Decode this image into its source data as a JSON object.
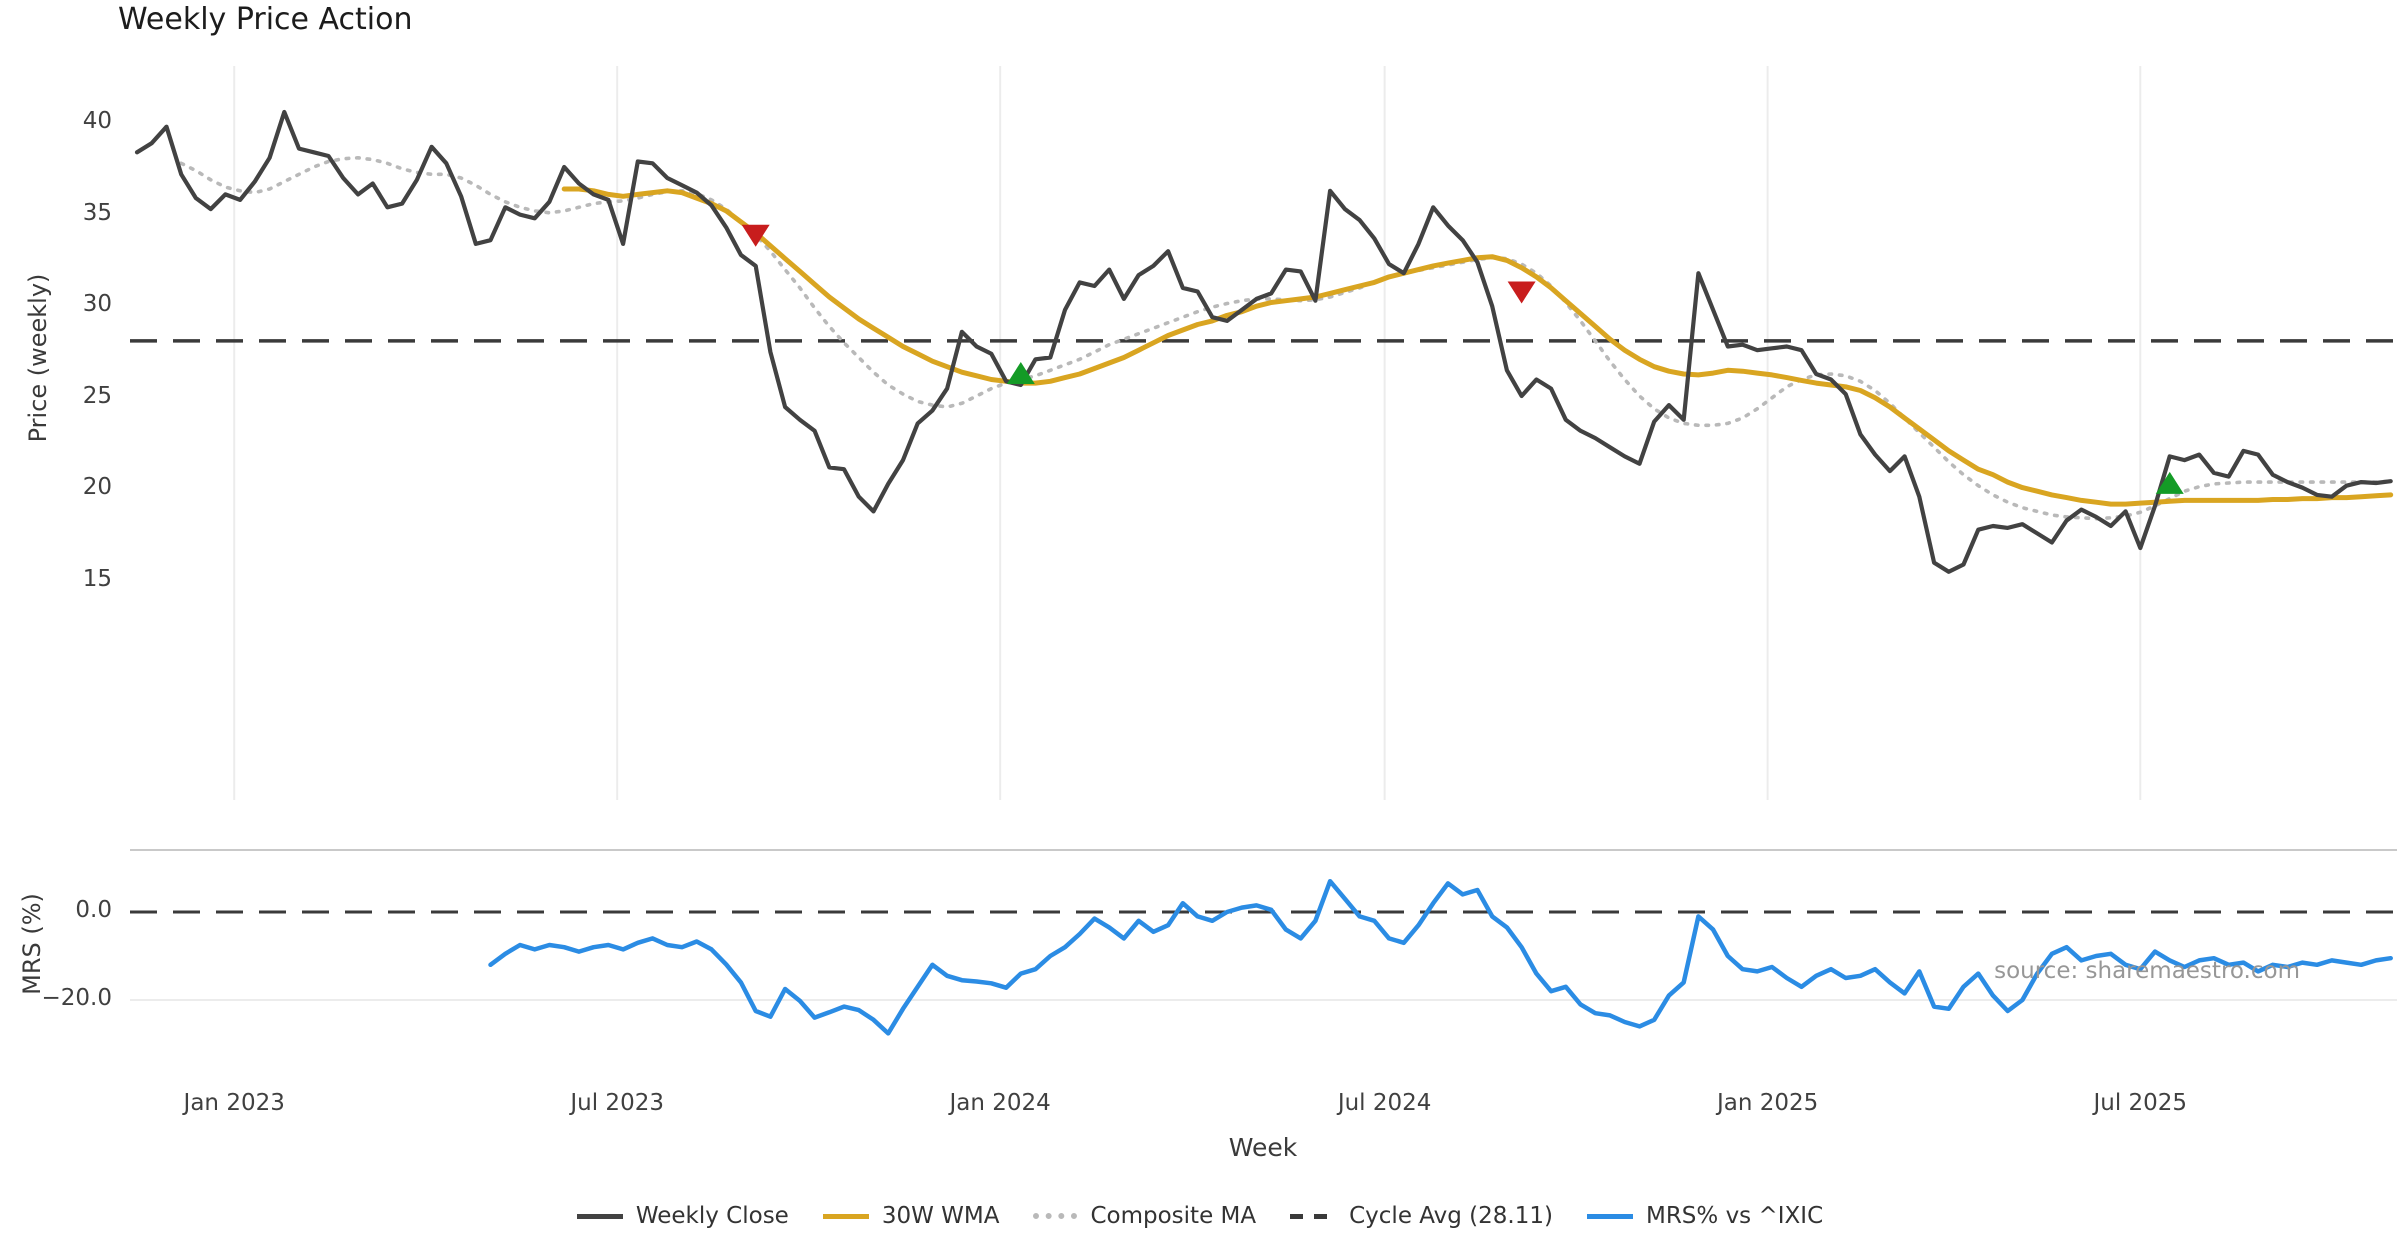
{
  "title": "Weekly Price Action",
  "source_note": "source: sharemaestro.com",
  "colors": {
    "close": "#424242",
    "wma": "#d9a521",
    "composite": "#b9b9b9",
    "cycle_avg": "#3a3a3a",
    "mrs": "#2b8ce4",
    "sell_marker": "#c81d1d",
    "buy_marker": "#149b26",
    "grid": "#ececec",
    "spine": "#c9c9c9",
    "tick_text": "#404040",
    "source_text": "#979797"
  },
  "legend": [
    {
      "label": "Weekly Close",
      "color": "#424242",
      "style": "solid"
    },
    {
      "label": "30W WMA",
      "color": "#d9a521",
      "style": "solid"
    },
    {
      "label": "Composite MA",
      "color": "#b9b9b9",
      "style": "dotted"
    },
    {
      "label": "Cycle Avg (28.11)",
      "color": "#3a3a3a",
      "style": "dashed"
    },
    {
      "label": "MRS% vs ^IXIC",
      "color": "#2b8ce4",
      "style": "solid"
    }
  ],
  "chart_data": [
    {
      "type": "line",
      "panel": "price",
      "title": "Weekly Price Action",
      "ylabel": "Price (weekly)",
      "xlabel": "Week",
      "ylim": [
        13.5,
        42.5
      ],
      "yticks": [
        40,
        35,
        30,
        25,
        20,
        15
      ],
      "xticks": [
        {
          "label": "Jan 2023",
          "week": 6.6
        },
        {
          "label": "Jul 2023",
          "week": 32.6
        },
        {
          "label": "Jan 2024",
          "week": 58.6
        },
        {
          "label": "Jul 2024",
          "week": 84.7
        },
        {
          "label": "Jan 2025",
          "week": 110.7
        },
        {
          "label": "Jul 2025",
          "week": 136.0
        }
      ],
      "cycle_avg": 28.11,
      "grid": "vertical-only",
      "series": [
        {
          "name": "Weekly Close",
          "style": "solid",
          "color": "#424242",
          "start_week": 0,
          "values": [
            38.4,
            38.9,
            39.8,
            37.2,
            35.9,
            35.3,
            36.1,
            35.8,
            36.8,
            38.1,
            40.6,
            38.6,
            38.4,
            38.2,
            37.0,
            36.1,
            36.7,
            35.4,
            35.6,
            36.9,
            38.7,
            37.8,
            36.0,
            33.4,
            33.6,
            35.4,
            35.0,
            34.8,
            35.7,
            37.6,
            36.7,
            36.1,
            35.8,
            33.4,
            37.9,
            37.8,
            37.0,
            36.6,
            36.2,
            35.5,
            34.3,
            32.8,
            32.2,
            27.5,
            24.5,
            23.8,
            23.2,
            21.2,
            21.1,
            19.6,
            18.8,
            20.3,
            21.6,
            23.6,
            24.3,
            25.5,
            28.6,
            27.8,
            27.4,
            25.9,
            25.7,
            27.1,
            27.2,
            29.8,
            31.3,
            31.1,
            32.0,
            30.4,
            31.7,
            32.2,
            33.0,
            31.0,
            30.8,
            29.4,
            29.2,
            29.8,
            30.4,
            30.7,
            32.0,
            31.9,
            30.3,
            36.3,
            35.3,
            34.7,
            33.7,
            32.3,
            31.8,
            33.4,
            35.4,
            34.4,
            33.6,
            32.4,
            30.0,
            26.5,
            25.1,
            26.0,
            25.5,
            23.8,
            23.2,
            22.8,
            22.3,
            21.8,
            21.4,
            23.7,
            24.6,
            23.8,
            31.8,
            29.8,
            27.8,
            27.9,
            27.6,
            27.7,
            27.8,
            27.6,
            26.3,
            26.0,
            25.2,
            23.0,
            21.9,
            21.0,
            21.8,
            19.6,
            16.0,
            15.5,
            15.9,
            17.8,
            18.0,
            17.9,
            18.1,
            17.6,
            17.1,
            18.3,
            18.9,
            18.5,
            18.0,
            18.8,
            16.8,
            19.1,
            21.8,
            21.6,
            21.9,
            20.9,
            20.7,
            22.1,
            21.9,
            20.8,
            20.4,
            20.1,
            19.7,
            19.6,
            20.2,
            20.4,
            20.35,
            20.45
          ]
        },
        {
          "name": "30W WMA",
          "style": "solid",
          "color": "#d9a521",
          "start_week": 29,
          "values": [
            36.4,
            36.4,
            36.3,
            36.1,
            36.0,
            36.1,
            36.2,
            36.3,
            36.2,
            35.9,
            35.6,
            35.2,
            34.6,
            34.0,
            33.3,
            32.6,
            31.9,
            31.2,
            30.5,
            29.9,
            29.3,
            28.8,
            28.3,
            27.8,
            27.4,
            27.0,
            26.7,
            26.4,
            26.2,
            26.0,
            25.9,
            25.8,
            25.8,
            25.9,
            26.1,
            26.3,
            26.6,
            26.9,
            27.2,
            27.6,
            28.0,
            28.4,
            28.7,
            29.0,
            29.2,
            29.5,
            29.7,
            30.0,
            30.2,
            30.3,
            30.4,
            30.5,
            30.7,
            30.9,
            31.1,
            31.3,
            31.6,
            31.8,
            32.0,
            32.2,
            32.35,
            32.5,
            32.65,
            32.7,
            32.5,
            32.1,
            31.6,
            31.0,
            30.3,
            29.6,
            28.9,
            28.2,
            27.6,
            27.1,
            26.7,
            26.45,
            26.3,
            26.25,
            26.35,
            26.5,
            26.45,
            26.35,
            26.25,
            26.1,
            25.95,
            25.8,
            25.7,
            25.6,
            25.4,
            25.0,
            24.5,
            23.9,
            23.3,
            22.7,
            22.1,
            21.6,
            21.1,
            20.8,
            20.4,
            20.1,
            19.9,
            19.7,
            19.55,
            19.4,
            19.3,
            19.2,
            19.2,
            19.25,
            19.3,
            19.35,
            19.4,
            19.4,
            19.4,
            19.4,
            19.4,
            19.4,
            19.45,
            19.45,
            19.5,
            19.5,
            19.55,
            19.55,
            19.6,
            19.65,
            19.7
          ]
        },
        {
          "name": "Composite MA",
          "style": "dotted",
          "color": "#b9b9b9",
          "start_week": 3,
          "values": [
            37.8,
            37.4,
            36.9,
            36.5,
            36.3,
            36.2,
            36.4,
            36.8,
            37.2,
            37.6,
            37.9,
            38.05,
            38.1,
            38.0,
            37.8,
            37.5,
            37.3,
            37.2,
            37.2,
            37.0,
            36.6,
            36.1,
            35.7,
            35.4,
            35.2,
            35.1,
            35.2,
            35.4,
            35.6,
            35.7,
            35.75,
            35.9,
            36.1,
            36.25,
            36.3,
            36.15,
            35.8,
            35.3,
            34.6,
            33.9,
            33.0,
            32.0,
            31.0,
            29.9,
            28.9,
            28.0,
            27.2,
            26.4,
            25.7,
            25.2,
            24.8,
            24.6,
            24.5,
            24.7,
            25.1,
            25.5,
            25.8,
            26.0,
            26.2,
            26.5,
            26.8,
            27.1,
            27.5,
            27.9,
            28.2,
            28.5,
            28.8,
            29.1,
            29.4,
            29.7,
            29.95,
            30.15,
            30.3,
            30.4,
            30.4,
            30.35,
            30.3,
            30.35,
            30.5,
            30.75,
            31.0,
            31.3,
            31.6,
            31.8,
            31.95,
            32.1,
            32.25,
            32.4,
            32.55,
            32.65,
            32.6,
            32.3,
            31.8,
            31.1,
            30.2,
            29.2,
            28.1,
            27.0,
            26.0,
            25.1,
            24.4,
            23.9,
            23.6,
            23.5,
            23.5,
            23.6,
            23.9,
            24.4,
            25.0,
            25.6,
            26.0,
            26.25,
            26.3,
            26.2,
            25.9,
            25.4,
            24.7,
            23.9,
            23.1,
            22.3,
            21.5,
            20.8,
            20.2,
            19.7,
            19.3,
            19.0,
            18.8,
            18.6,
            18.5,
            18.45,
            18.4,
            18.45,
            18.55,
            18.75,
            19.1,
            19.5,
            19.9,
            20.15,
            20.3,
            20.35,
            20.4,
            20.4,
            20.4,
            20.4,
            20.4,
            20.4,
            20.4,
            20.4,
            20.4,
            20.4,
            20.45
          ]
        }
      ],
      "markers": {
        "sell": [
          {
            "week": 42,
            "price": 33.9
          },
          {
            "week": 94,
            "price": 30.8
          }
        ],
        "buy": [
          {
            "week": 60,
            "price": 26.3
          },
          {
            "week": 138,
            "price": 20.3
          }
        ]
      }
    },
    {
      "type": "line",
      "panel": "mrs",
      "ylabel": "MRS (%)",
      "yticks": [
        {
          "label": "0.0",
          "value": 0
        },
        {
          "label": "−20.0",
          "value": -20
        }
      ],
      "zero_line": 0,
      "series": [
        {
          "name": "MRS% vs ^IXIC",
          "style": "solid",
          "color": "#2b8ce4",
          "start_week": 24,
          "values": [
            -12,
            -9.5,
            -7.5,
            -8.5,
            -7.5,
            -8,
            -9,
            -8,
            -7.5,
            -8.5,
            -7,
            -6,
            -7.5,
            -8,
            -6.7,
            -8.5,
            -11.9,
            -16,
            -22.5,
            -23.8,
            -17.5,
            -20.2,
            -24,
            -22.8,
            -21.5,
            -22.3,
            -24.5,
            -27.6,
            -22,
            -17,
            -12,
            -14.5,
            -15.5,
            -15.8,
            -16.2,
            -17.2,
            -14,
            -13,
            -10,
            -8,
            -5,
            -1.5,
            -3.5,
            -6,
            -2,
            -4.5,
            -3,
            2,
            -1,
            -2,
            0,
            1,
            1.5,
            0.5,
            -4,
            -6,
            -2,
            7,
            3,
            -1,
            -2,
            -6,
            -7,
            -3,
            2,
            6.5,
            4,
            5,
            -1,
            -3.5,
            -8,
            -14,
            -18,
            -17,
            -21,
            -23,
            -23.5,
            -25,
            -26,
            -24.5,
            -19,
            -16,
            -1,
            -4,
            -10,
            -13,
            -13.5,
            -12.5,
            -15,
            -17,
            -14.5,
            -13,
            -15,
            -14.5,
            -13,
            -16,
            -18.5,
            -13.5,
            -21.5,
            -22,
            -17,
            -14,
            -19,
            -22.5,
            -20,
            -14,
            -9.5,
            -8,
            -11,
            -10,
            -9.5,
            -12,
            -13,
            -9,
            -11,
            -12.5,
            -11,
            -10.5,
            -12,
            -11.5,
            -13.5,
            -12,
            -12.5,
            -11.5,
            -12,
            -11,
            -11.5,
            -12,
            -11,
            -10.5
          ]
        }
      ]
    }
  ]
}
